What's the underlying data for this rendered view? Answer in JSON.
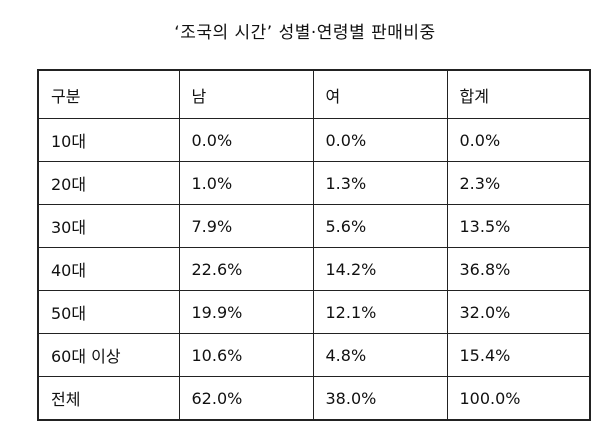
{
  "title": "‘조국의 시간’ 성별·연령별 판매비중",
  "table": {
    "headers": [
      "구분",
      "남",
      "여",
      "합계"
    ],
    "rows": [
      [
        "10대",
        "0.0%",
        "0.0%",
        "0.0%"
      ],
      [
        "20대",
        "1.0%",
        "1.3%",
        "2.3%"
      ],
      [
        "30대",
        "7.9%",
        "5.6%",
        "13.5%"
      ],
      [
        "40대",
        "22.6%",
        "14.2%",
        "36.8%"
      ],
      [
        "50대",
        "19.9%",
        "12.1%",
        "32.0%"
      ],
      [
        "60대 이상",
        "10.6%",
        "4.8%",
        "15.4%"
      ],
      [
        "전체",
        "62.0%",
        "38.0%",
        "100.0%"
      ]
    ]
  }
}
